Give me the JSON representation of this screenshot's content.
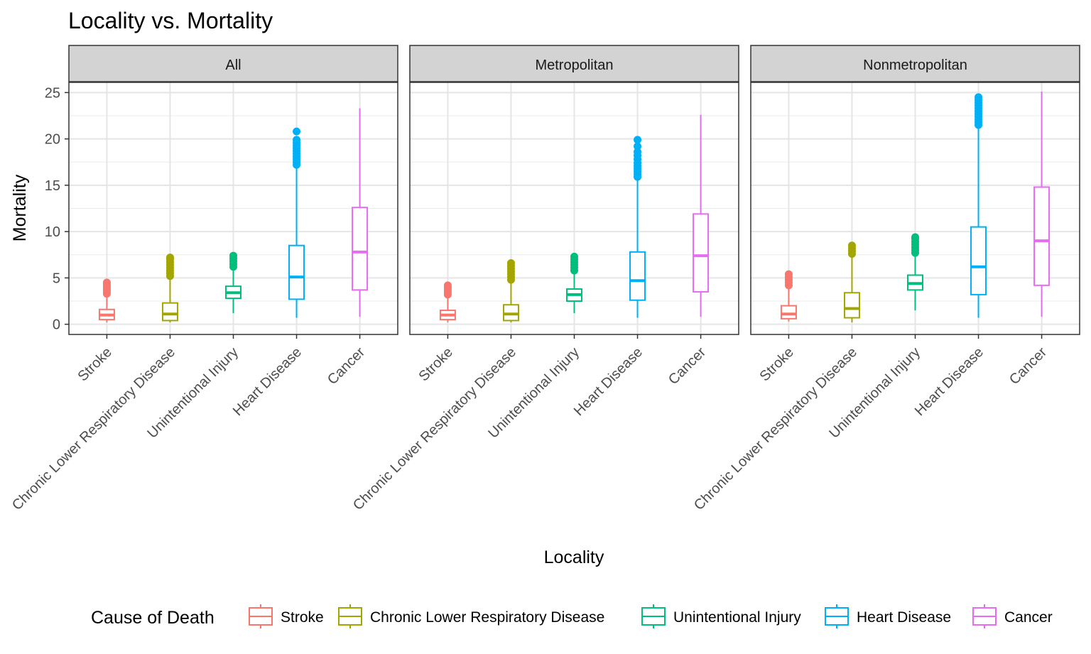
{
  "chart_data": {
    "type": "boxplot",
    "title": "Locality vs. Mortality",
    "xlabel": "Locality",
    "ylabel": "Mortality",
    "ylim": [
      -1.1,
      26.1
    ],
    "yticks": [
      0,
      5,
      10,
      15,
      20,
      25
    ],
    "grid": true,
    "legend_title": "Cause of Death",
    "legend_position": "bottom",
    "categories": [
      "Stroke",
      "Chronic Lower Respiratory Disease",
      "Unintentional Injury",
      "Heart Disease",
      "Cancer"
    ],
    "colors": [
      "#F8766D",
      "#A3A500",
      "#00BF7D",
      "#00B0F6",
      "#E76BF3"
    ],
    "panels": [
      {
        "name": "All",
        "boxes": [
          {
            "whisker_low": 0.2,
            "q1": 0.5,
            "median": 1.0,
            "q3": 1.6,
            "whisker_high": 3.2,
            "outliers": [
              3.3,
              3.5,
              3.7,
              3.9,
              4.1,
              4.3,
              4.5
            ]
          },
          {
            "whisker_low": 0.2,
            "q1": 0.4,
            "median": 1.1,
            "q3": 2.3,
            "whisker_high": 5.0,
            "outliers": [
              5.2,
              5.5,
              5.8,
              6.1,
              6.4,
              6.7,
              7.0,
              7.2
            ]
          },
          {
            "whisker_low": 1.2,
            "q1": 2.8,
            "median": 3.4,
            "q3": 4.1,
            "whisker_high": 6.0,
            "outliers": [
              6.2,
              6.5,
              6.8,
              7.1,
              7.4
            ]
          },
          {
            "whisker_low": 0.7,
            "q1": 2.7,
            "median": 5.1,
            "q3": 8.5,
            "whisker_high": 17.0,
            "outliers": [
              17.2,
              17.5,
              17.8,
              18.1,
              18.4,
              18.7,
              19.0,
              19.3,
              19.6,
              19.9,
              20.8
            ]
          },
          {
            "whisker_low": 0.8,
            "q1": 3.7,
            "median": 7.8,
            "q3": 12.6,
            "whisker_high": 23.3,
            "outliers": []
          }
        ]
      },
      {
        "name": "Metropolitan",
        "boxes": [
          {
            "whisker_low": 0.2,
            "q1": 0.5,
            "median": 1.0,
            "q3": 1.5,
            "whisker_high": 3.0,
            "outliers": [
              3.2,
              3.4,
              3.6,
              3.8,
              4.0,
              4.2
            ]
          },
          {
            "whisker_low": 0.2,
            "q1": 0.4,
            "median": 1.1,
            "q3": 2.1,
            "whisker_high": 4.6,
            "outliers": [
              4.8,
              5.1,
              5.4,
              5.7,
              6.0,
              6.3,
              6.6
            ]
          },
          {
            "whisker_low": 1.2,
            "q1": 2.5,
            "median": 3.2,
            "q3": 3.8,
            "whisker_high": 5.6,
            "outliers": [
              5.8,
              6.1,
              6.4,
              6.7,
              7.0,
              7.3
            ]
          },
          {
            "whisker_low": 0.7,
            "q1": 2.6,
            "median": 4.7,
            "q3": 7.8,
            "whisker_high": 15.7,
            "outliers": [
              15.9,
              16.2,
              16.5,
              16.8,
              17.1,
              17.4,
              17.8,
              18.2,
              18.6,
              19.2,
              19.9
            ]
          },
          {
            "whisker_low": 0.8,
            "q1": 3.5,
            "median": 7.4,
            "q3": 11.9,
            "whisker_high": 22.6,
            "outliers": []
          }
        ]
      },
      {
        "name": "Nonmetropolitan",
        "boxes": [
          {
            "whisker_low": 0.3,
            "q1": 0.6,
            "median": 1.1,
            "q3": 2.0,
            "whisker_high": 4.0,
            "outliers": [
              4.2,
              4.5,
              4.8,
              5.1,
              5.4
            ]
          },
          {
            "whisker_low": 0.2,
            "q1": 0.7,
            "median": 1.7,
            "q3": 3.4,
            "whisker_high": 7.4,
            "outliers": [
              7.6,
              7.9,
              8.2,
              8.5
            ]
          },
          {
            "whisker_low": 1.5,
            "q1": 3.7,
            "median": 4.4,
            "q3": 5.3,
            "whisker_high": 7.5,
            "outliers": [
              7.7,
              8.0,
              8.3,
              8.6,
              8.9,
              9.2,
              9.4
            ]
          },
          {
            "whisker_low": 0.7,
            "q1": 3.2,
            "median": 6.2,
            "q3": 10.5,
            "whisker_high": 21.3,
            "outliers": [
              21.5,
              21.8,
              22.1,
              22.4,
              22.7,
              23.0,
              23.3,
              23.6,
              23.9,
              24.2,
              24.5
            ]
          },
          {
            "whisker_low": 0.8,
            "q1": 4.2,
            "median": 9.0,
            "q3": 14.8,
            "whisker_high": 25.1,
            "outliers": []
          }
        ]
      }
    ]
  }
}
